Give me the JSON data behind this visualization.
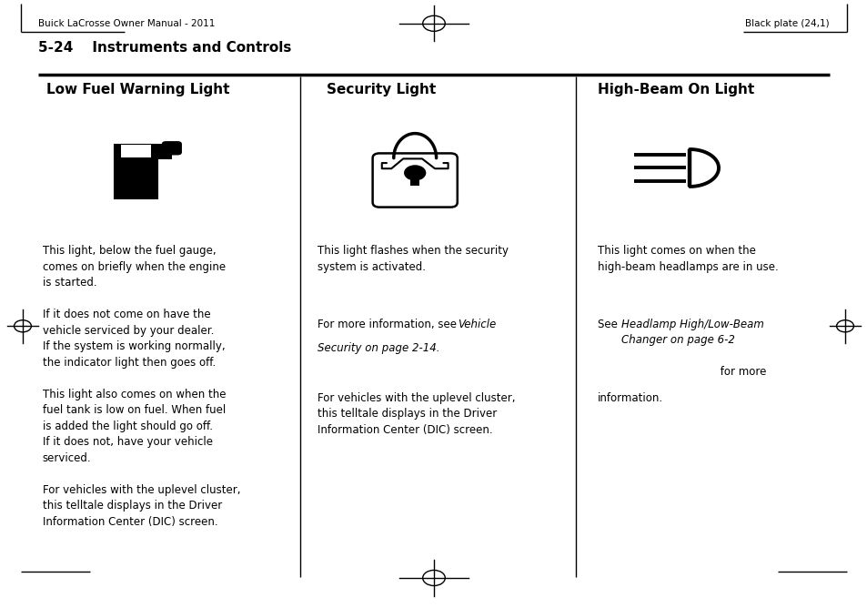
{
  "bg_color": "#ffffff",
  "page_width": 9.54,
  "page_height": 6.68,
  "header_left": "Buick LaCrosse Owner Manual - 2011",
  "header_right": "Black plate (24,1)",
  "section_title": "5-24    Instruments and Controls",
  "col_titles": [
    "Low Fuel Warning Light",
    "Security Light",
    "High-Beam On Light"
  ],
  "col_dividers": [
    0.345,
    0.665
  ],
  "text_fontsize": 8.5,
  "header_fontsize": 7.5,
  "section_fontsize": 11,
  "col_title_fontsize": 11
}
